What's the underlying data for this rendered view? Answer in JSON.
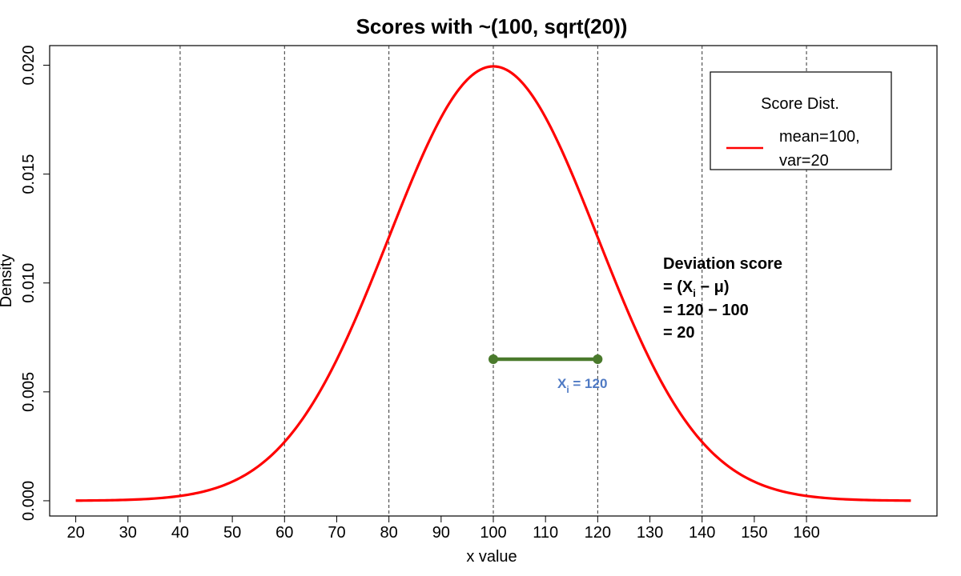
{
  "chart_data": {
    "type": "line",
    "title": "Scores with ~(100, sqrt(20))",
    "xlabel": "x value",
    "ylabel": "Density",
    "xlim": [
      15,
      185
    ],
    "ylim": [
      -0.0007,
      0.0209
    ],
    "x_ticks": [
      20,
      30,
      40,
      50,
      60,
      70,
      80,
      90,
      100,
      110,
      120,
      130,
      140,
      150,
      160
    ],
    "x_tick_labels": [
      "20",
      "30",
      "40",
      "50",
      "60",
      "70",
      "80",
      "90",
      "100",
      "110",
      "120",
      "130",
      "140",
      "150",
      "160"
    ],
    "y_ticks": [
      0.0,
      0.005,
      0.01,
      0.015,
      0.02
    ],
    "y_tick_labels": [
      "0.000",
      "0.005",
      "0.010",
      "0.015",
      "0.020"
    ],
    "vlines": [
      40,
      60,
      80,
      100,
      120,
      140,
      160
    ],
    "grid": false,
    "series": [
      {
        "name": "mean=100, var=20",
        "color": "#ff0000",
        "distribution": "normal",
        "mean": 100,
        "sd": 20,
        "x_range": [
          20,
          180
        ],
        "x": [
          20,
          30,
          40,
          50,
          60,
          70,
          80,
          90,
          100,
          110,
          120,
          130,
          140,
          150,
          160,
          170,
          180
        ],
        "y": [
          0.0,
          0.0001,
          0.0002,
          0.0009,
          0.0027,
          0.0065,
          0.0121,
          0.0176,
          0.0199,
          0.0176,
          0.0121,
          0.0065,
          0.0027,
          0.0009,
          0.0002,
          0.0001,
          0.0
        ]
      }
    ],
    "deviation_segment": {
      "x0": 100,
      "x1": 120,
      "y": 0.0065,
      "color": "#4a7a2c"
    },
    "legend": {
      "title": "Score Dist.",
      "entry_lines": [
        "mean=100,",
        "var=20"
      ],
      "position": "top-right"
    },
    "annotations": {
      "xi_label": {
        "prefix": "X",
        "sub": "i",
        "suffix": " = 120",
        "color": "#4f7ac4"
      },
      "deviation": {
        "heading": "Deviation score",
        "line1_prefix": "= (X",
        "line1_sub": "i",
        "line1_suffix": " − μ)",
        "line2": "= 120 − 100",
        "line3": "= 20"
      }
    }
  }
}
